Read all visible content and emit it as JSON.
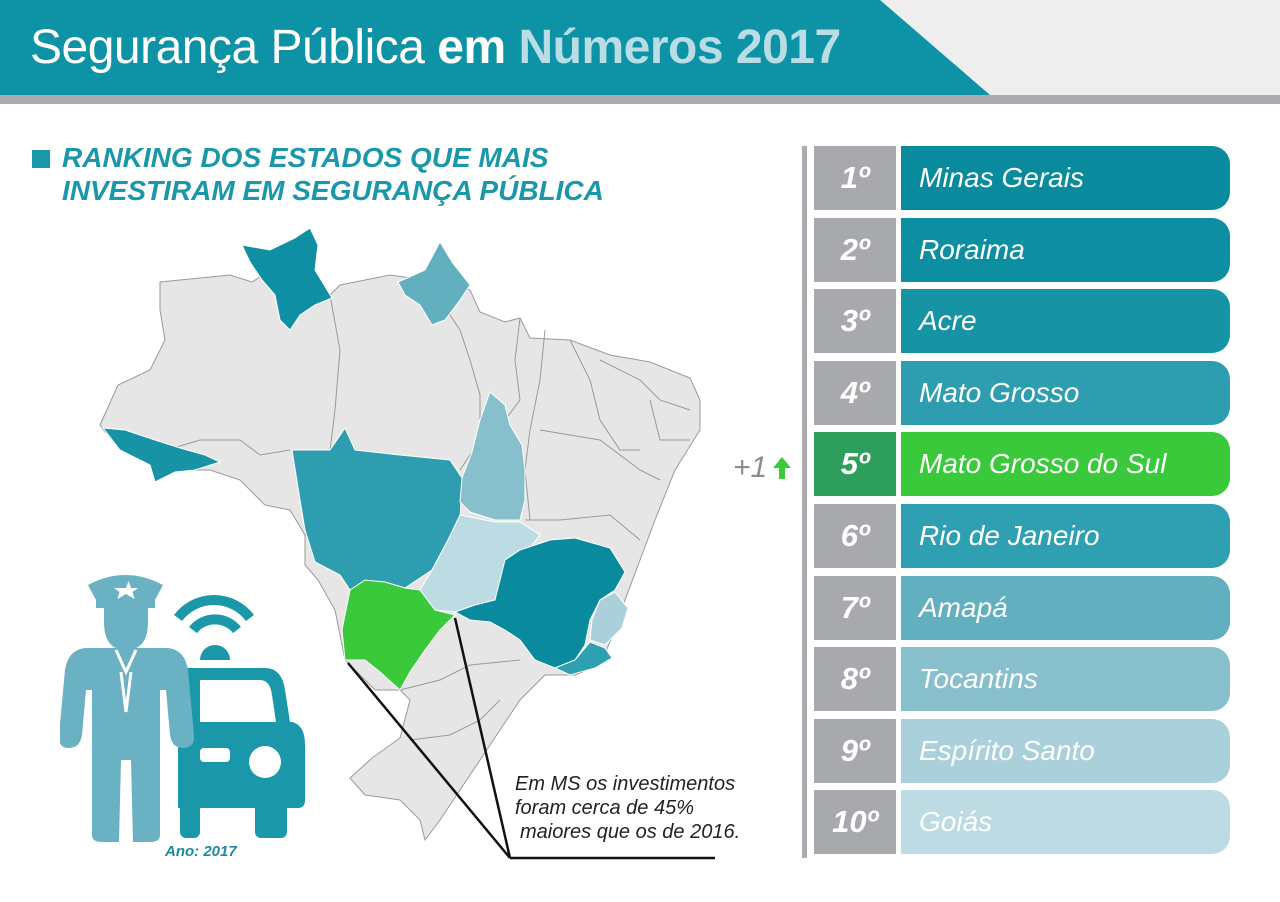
{
  "header": {
    "title_part1": "Segurança Pública",
    "title_part2": "em",
    "title_part3": "Números 2017"
  },
  "section": {
    "title_line1": "RANKING DOS ESTADOS QUE MAIS",
    "title_line2": "INVESTIRAM EM SEGURANÇA PÚBLICA"
  },
  "callout": {
    "line1": "Em MS os investimentos",
    "line2": "foram cerca de 45%",
    "line3": "maiores que os de 2016."
  },
  "year_label": "Ano: 2017",
  "ranking": [
    {
      "position": "1º",
      "state": "Minas Gerais",
      "color": "#0a8a9d"
    },
    {
      "position": "2º",
      "state": "Roraima",
      "color": "#0d8ea1"
    },
    {
      "position": "3º",
      "state": "Acre",
      "color": "#1694a6"
    },
    {
      "position": "4º",
      "state": "Mato Grosso",
      "color": "#2e9db0"
    },
    {
      "position": "5º",
      "state": "Mato Grosso do Sul",
      "color": "#3ac93a",
      "num_color": "#2e9e5c",
      "highlight": true
    },
    {
      "position": "6º",
      "state": "Rio de Janeiro",
      "color": "#2f9fb2"
    },
    {
      "position": "7º",
      "state": "Amapá",
      "color": "#62afc0"
    },
    {
      "position": "8º",
      "state": "Tocantins",
      "color": "#88bfcd"
    },
    {
      "position": "9º",
      "state": "Espírito Santo",
      "color": "#aad1db"
    },
    {
      "position": "10º",
      "state": "Goiás",
      "color": "#bcdbe2"
    }
  ],
  "change_indicator": {
    "text": "+1",
    "arrow": "up-arrow-icon",
    "color": "#3ac93a"
  },
  "colors": {
    "accent": "#1b97aa",
    "header_band": "#0e93a6",
    "highlight": "#3ac93a",
    "map_default": "#e6e6e6"
  }
}
